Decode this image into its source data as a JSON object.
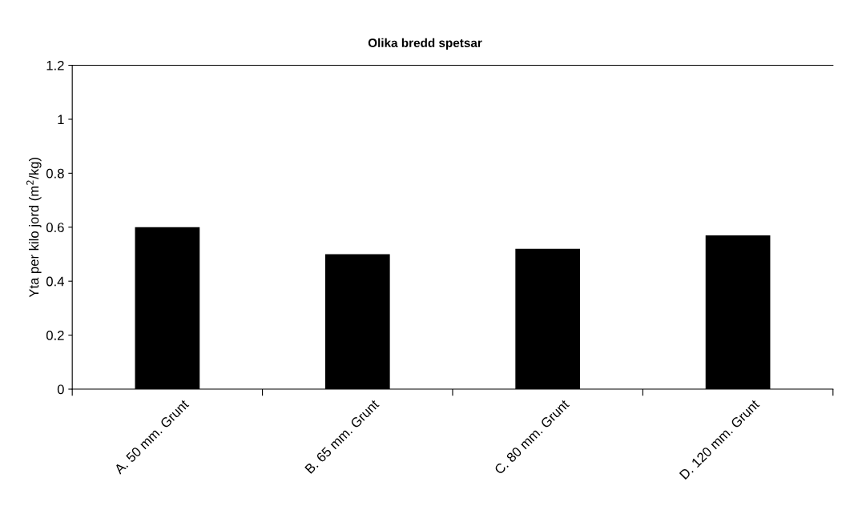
{
  "chart_data": {
    "type": "bar",
    "title": "Olika bredd spetsar",
    "ylabel": "Yta per kilo jord (m$^{2}$/kg)",
    "categories": [
      "A. 50 mm. Grunt",
      "B. 65 mm. Grunt",
      "C. 80 mm. Grunt",
      "D. 120 mm. Grunt"
    ],
    "values": [
      0.6,
      0.5,
      0.52,
      0.57
    ],
    "color": "#000000",
    "ylim": [
      0,
      1.2
    ],
    "yticks": [
      0,
      0.2,
      0.4,
      0.6,
      0.8,
      1,
      1.2
    ],
    "grid": false,
    "legend": false
  }
}
